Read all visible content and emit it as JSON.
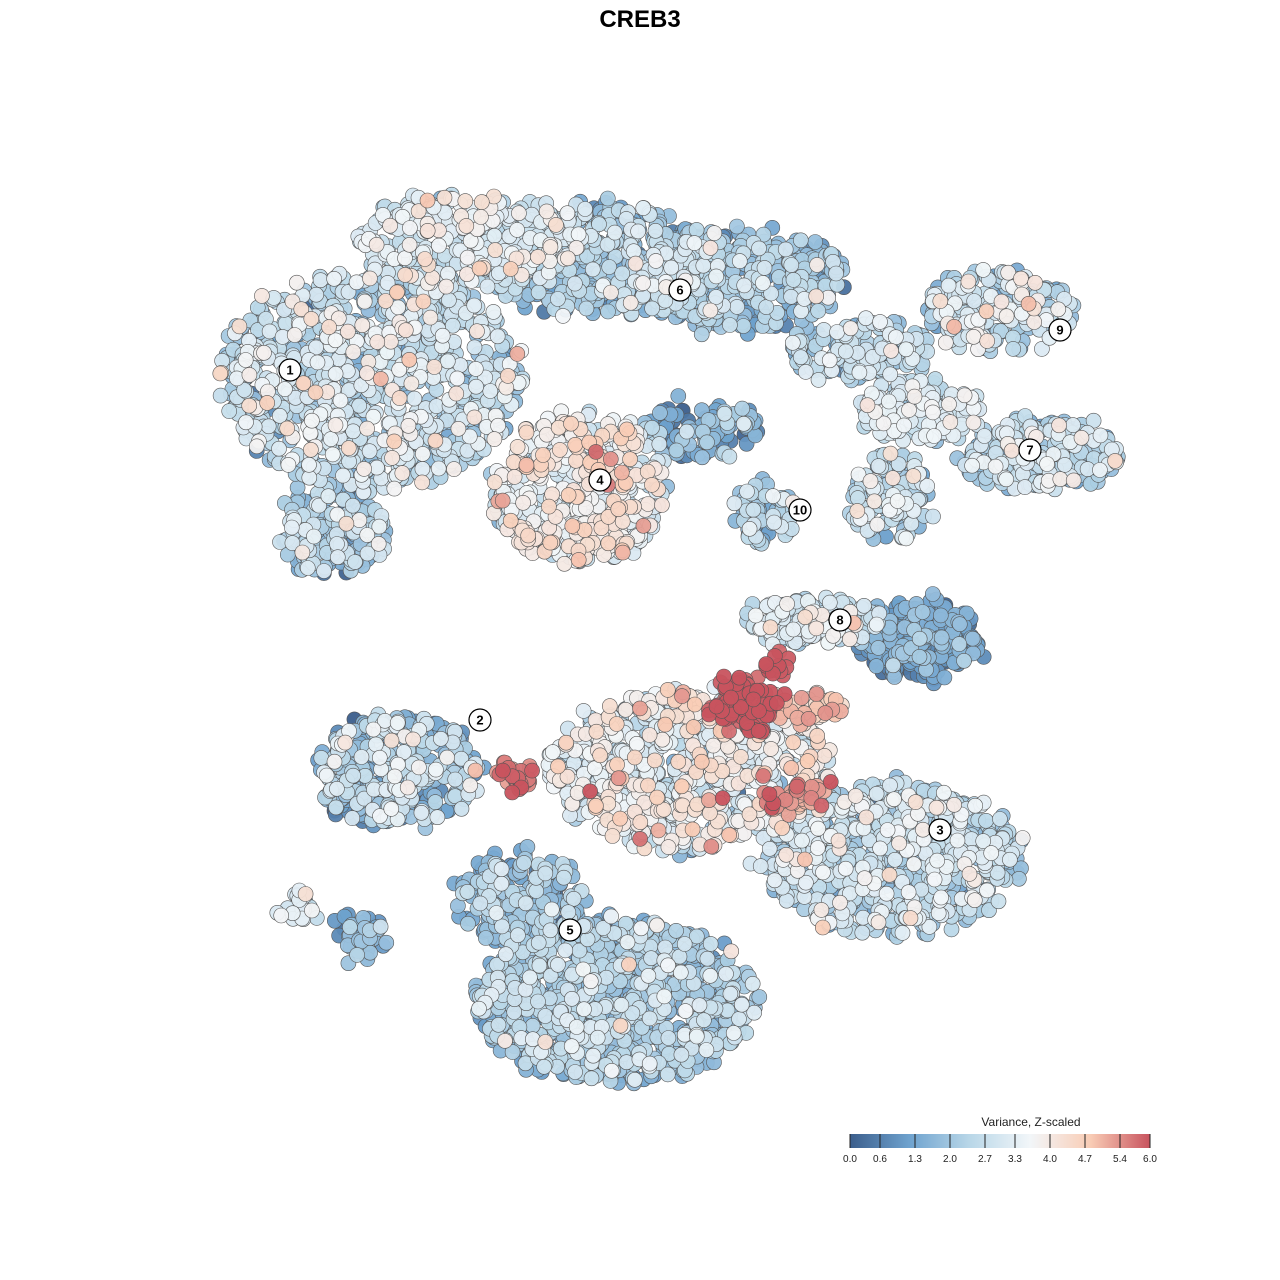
{
  "chart_data": {
    "type": "scatter",
    "title": "CREB3",
    "xlabel": "",
    "ylabel": "",
    "grid": false,
    "axes_visible": false,
    "point_count_estimate": 7500,
    "clusters": [
      {
        "label": "1",
        "x": -17.0,
        "y": 12.5,
        "mean_variance_z": 2.6
      },
      {
        "label": "2",
        "x": -7.5,
        "y": -5.0,
        "mean_variance_z": 2.4
      },
      {
        "label": "3",
        "x": 15.5,
        "y": -10.5,
        "mean_variance_z": 2.5
      },
      {
        "label": "4",
        "x": -1.5,
        "y": 7.0,
        "mean_variance_z": 3.4
      },
      {
        "label": "5",
        "x": -3.0,
        "y": -15.5,
        "mean_variance_z": 2.0
      },
      {
        "label": "6",
        "x": 2.5,
        "y": 16.5,
        "mean_variance_z": 2.1
      },
      {
        "label": "7",
        "x": 20.0,
        "y": 8.5,
        "mean_variance_z": 2.7
      },
      {
        "label": "8",
        "x": 10.5,
        "y": 0.0,
        "mean_variance_z": 2.3
      },
      {
        "label": "9",
        "x": 21.5,
        "y": 14.5,
        "mean_variance_z": 2.8
      },
      {
        "label": "10",
        "x": 8.5,
        "y": 5.5,
        "mean_variance_z": 2.2
      }
    ],
    "hotspots": [
      {
        "near_cluster": "8",
        "x": 6.5,
        "y": -3.0,
        "variance_z": 6.0
      },
      {
        "near_cluster": "2",
        "x": -7.0,
        "y": -7.0,
        "variance_z": 5.6
      },
      {
        "near_cluster": "3",
        "x": 7.5,
        "y": -7.5,
        "variance_z": 5.2
      }
    ],
    "colorbar": {
      "title": "Variance, Z-scaled",
      "min": 0.0,
      "max": 6.0,
      "ticks": [
        "0.0",
        "0.6",
        "1.3",
        "2.0",
        "2.7",
        "3.3",
        "4.0",
        "4.7",
        "5.4",
        "6.0"
      ],
      "colors": [
        "#3b5e8c",
        "#6fa3cf",
        "#b9d7e8",
        "#f2f6f9",
        "#f9cdb6",
        "#c8535e"
      ],
      "placement": "bottom-right"
    },
    "point_style": {
      "stroke": "#555555",
      "opacity": 0.95
    }
  }
}
